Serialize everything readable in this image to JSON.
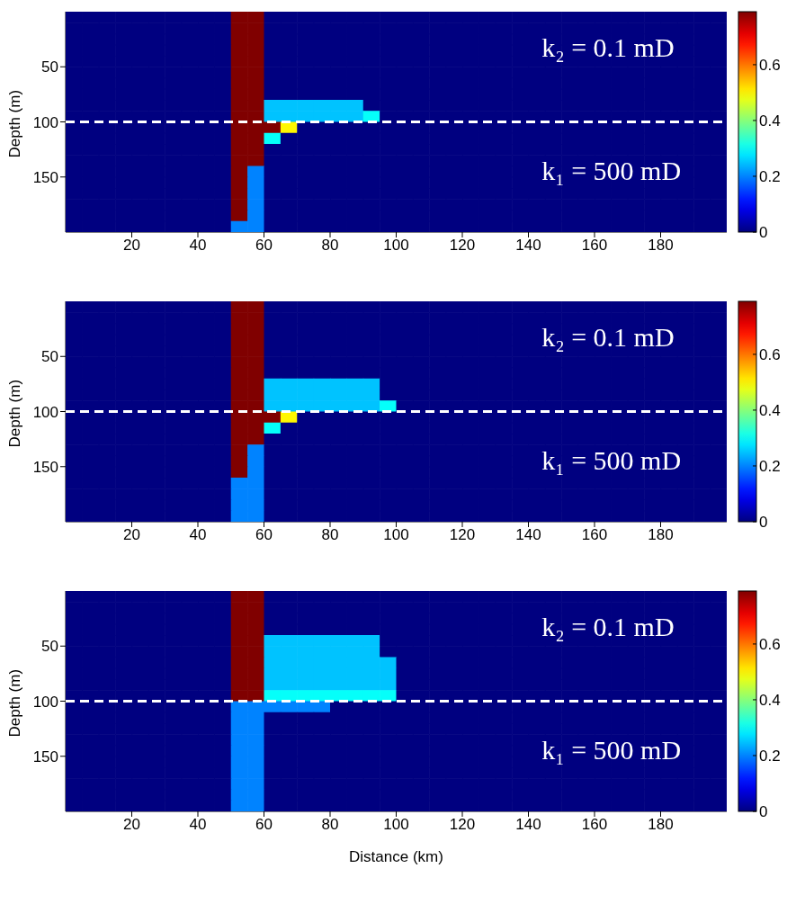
{
  "chart_data": [
    {
      "type": "heatmap",
      "ylabel": "Depth (m)",
      "xlim": [
        0,
        200
      ],
      "xticks": [
        20,
        40,
        60,
        80,
        100,
        120,
        140,
        160,
        180
      ],
      "ylim": [
        200,
        0
      ],
      "yticks": [
        50,
        100,
        150
      ],
      "clim": [
        0,
        0.79
      ],
      "cticks": [
        0,
        0.2,
        0.4,
        0.6
      ],
      "ref_lines": [
        {
          "axis": "y",
          "value": 100,
          "color": "#ffffff",
          "line_style": "dashed"
        }
      ],
      "annotations": [
        "k₂ = 0.1 mD",
        "k₁ = 500 mD"
      ],
      "cells": [
        [
          0,
          0,
          0,
          0,
          0,
          0,
          0,
          0,
          0,
          0,
          0.79,
          0.79,
          0,
          0,
          0,
          0,
          0,
          0,
          0,
          0,
          0,
          0,
          0,
          0,
          0,
          0,
          0,
          0,
          0,
          0,
          0,
          0,
          0,
          0,
          0,
          0,
          0,
          0,
          0,
          0
        ],
        [
          0,
          0,
          0,
          0,
          0,
          0,
          0,
          0,
          0,
          0,
          0.79,
          0.79,
          0,
          0,
          0,
          0,
          0,
          0,
          0,
          0,
          0,
          0,
          0,
          0,
          0,
          0,
          0,
          0,
          0,
          0,
          0,
          0,
          0,
          0,
          0,
          0,
          0,
          0,
          0,
          0
        ],
        [
          0,
          0,
          0,
          0,
          0,
          0,
          0,
          0,
          0,
          0,
          0.79,
          0.79,
          0,
          0,
          0,
          0,
          0,
          0,
          0,
          0,
          0,
          0,
          0,
          0,
          0,
          0,
          0,
          0,
          0,
          0,
          0,
          0,
          0,
          0,
          0,
          0,
          0,
          0,
          0,
          0
        ],
        [
          0,
          0,
          0,
          0,
          0,
          0,
          0,
          0,
          0,
          0,
          0.79,
          0.79,
          0,
          0,
          0,
          0,
          0,
          0,
          0,
          0,
          0,
          0,
          0,
          0,
          0,
          0,
          0,
          0,
          0,
          0,
          0,
          0,
          0,
          0,
          0,
          0,
          0,
          0,
          0,
          0
        ],
        [
          0,
          0,
          0,
          0,
          0,
          0,
          0,
          0,
          0,
          0,
          0.79,
          0.79,
          0,
          0,
          0,
          0,
          0,
          0,
          0,
          0,
          0,
          0,
          0,
          0,
          0,
          0,
          0,
          0,
          0,
          0,
          0,
          0,
          0,
          0,
          0,
          0,
          0,
          0,
          0,
          0
        ],
        [
          0,
          0,
          0,
          0,
          0,
          0,
          0,
          0,
          0,
          0,
          0.79,
          0.79,
          0,
          0,
          0,
          0,
          0,
          0,
          0,
          0,
          0,
          0,
          0,
          0,
          0,
          0,
          0,
          0,
          0,
          0,
          0,
          0,
          0,
          0,
          0,
          0,
          0,
          0,
          0,
          0
        ],
        [
          0,
          0,
          0,
          0,
          0,
          0,
          0,
          0,
          0,
          0,
          0.79,
          0.79,
          0,
          0,
          0,
          0,
          0,
          0,
          0,
          0,
          0,
          0,
          0,
          0,
          0,
          0,
          0,
          0,
          0,
          0,
          0,
          0,
          0,
          0,
          0,
          0,
          0,
          0,
          0,
          0
        ],
        [
          0,
          0,
          0,
          0,
          0,
          0,
          0,
          0,
          0,
          0,
          0.79,
          0.79,
          0,
          0,
          0,
          0,
          0,
          0,
          0,
          0,
          0,
          0,
          0,
          0,
          0,
          0,
          0,
          0,
          0,
          0,
          0,
          0,
          0,
          0,
          0,
          0,
          0,
          0,
          0,
          0
        ],
        [
          0,
          0,
          0,
          0,
          0,
          0,
          0,
          0,
          0,
          0,
          0.79,
          0.79,
          0.25,
          0.25,
          0.25,
          0.25,
          0.25,
          0.25,
          0,
          0,
          0,
          0,
          0,
          0,
          0,
          0,
          0,
          0,
          0,
          0,
          0,
          0,
          0,
          0,
          0,
          0,
          0,
          0,
          0,
          0
        ],
        [
          0,
          0,
          0,
          0,
          0,
          0,
          0,
          0,
          0,
          0,
          0.79,
          0.79,
          0.25,
          0.25,
          0.25,
          0.25,
          0.25,
          0.25,
          0.3,
          0,
          0,
          0,
          0,
          0,
          0,
          0,
          0,
          0,
          0,
          0,
          0,
          0,
          0,
          0,
          0,
          0,
          0,
          0,
          0,
          0
        ],
        [
          0,
          0,
          0,
          0,
          0,
          0,
          0,
          0,
          0,
          0,
          0.79,
          0.79,
          0.79,
          0.5,
          0,
          0,
          0,
          0,
          0,
          0,
          0,
          0,
          0,
          0,
          0,
          0,
          0,
          0,
          0,
          0,
          0,
          0,
          0,
          0,
          0,
          0,
          0,
          0,
          0,
          0
        ],
        [
          0,
          0,
          0,
          0,
          0,
          0,
          0,
          0,
          0,
          0,
          0.79,
          0.79,
          0.3,
          0,
          0,
          0,
          0,
          0,
          0,
          0,
          0,
          0,
          0,
          0,
          0,
          0,
          0,
          0,
          0,
          0,
          0,
          0,
          0,
          0,
          0,
          0,
          0,
          0,
          0,
          0
        ],
        [
          0,
          0,
          0,
          0,
          0,
          0,
          0,
          0,
          0,
          0,
          0.79,
          0.79,
          0,
          0,
          0,
          0,
          0,
          0,
          0,
          0,
          0,
          0,
          0,
          0,
          0,
          0,
          0,
          0,
          0,
          0,
          0,
          0,
          0,
          0,
          0,
          0,
          0,
          0,
          0,
          0
        ],
        [
          0,
          0,
          0,
          0,
          0,
          0,
          0,
          0,
          0,
          0,
          0.79,
          0.79,
          0,
          0,
          0,
          0,
          0,
          0,
          0,
          0,
          0,
          0,
          0,
          0,
          0,
          0,
          0,
          0,
          0,
          0,
          0,
          0,
          0,
          0,
          0,
          0,
          0,
          0,
          0,
          0
        ],
        [
          0,
          0,
          0,
          0,
          0,
          0,
          0,
          0,
          0,
          0,
          0.79,
          0.2,
          0,
          0,
          0,
          0,
          0,
          0,
          0,
          0,
          0,
          0,
          0,
          0,
          0,
          0,
          0,
          0,
          0,
          0,
          0,
          0,
          0,
          0,
          0,
          0,
          0,
          0,
          0,
          0
        ],
        [
          0,
          0,
          0,
          0,
          0,
          0,
          0,
          0,
          0,
          0,
          0.79,
          0.2,
          0,
          0,
          0,
          0,
          0,
          0,
          0,
          0,
          0,
          0,
          0,
          0,
          0,
          0,
          0,
          0,
          0,
          0,
          0,
          0,
          0,
          0,
          0,
          0,
          0,
          0,
          0,
          0
        ],
        [
          0,
          0,
          0,
          0,
          0,
          0,
          0,
          0,
          0,
          0,
          0.79,
          0.2,
          0,
          0,
          0,
          0,
          0,
          0,
          0,
          0,
          0,
          0,
          0,
          0,
          0,
          0,
          0,
          0,
          0,
          0,
          0,
          0,
          0,
          0,
          0,
          0,
          0,
          0,
          0,
          0
        ],
        [
          0,
          0,
          0,
          0,
          0,
          0,
          0,
          0,
          0,
          0,
          0.79,
          0.2,
          0,
          0,
          0,
          0,
          0,
          0,
          0,
          0,
          0,
          0,
          0,
          0,
          0,
          0,
          0,
          0,
          0,
          0,
          0,
          0,
          0,
          0,
          0,
          0,
          0,
          0,
          0,
          0
        ],
        [
          0,
          0,
          0,
          0,
          0,
          0,
          0,
          0,
          0,
          0,
          0.79,
          0.2,
          0,
          0,
          0,
          0,
          0,
          0,
          0,
          0,
          0,
          0,
          0,
          0,
          0,
          0,
          0,
          0,
          0,
          0,
          0,
          0,
          0,
          0,
          0,
          0,
          0,
          0,
          0,
          0
        ],
        [
          0,
          0,
          0,
          0,
          0,
          0,
          0,
          0,
          0,
          0,
          0.2,
          0.2,
          0,
          0,
          0,
          0,
          0,
          0,
          0,
          0,
          0,
          0,
          0,
          0,
          0,
          0,
          0,
          0,
          0,
          0,
          0,
          0,
          0,
          0,
          0,
          0,
          0,
          0,
          0,
          0
        ]
      ]
    },
    {
      "type": "heatmap",
      "ylabel": "Depth (m)",
      "xlim": [
        0,
        200
      ],
      "xticks": [
        20,
        40,
        60,
        80,
        100,
        120,
        140,
        160,
        180
      ],
      "ylim": [
        200,
        0
      ],
      "yticks": [
        50,
        100,
        150
      ],
      "clim": [
        0,
        0.79
      ],
      "cticks": [
        0,
        0.2,
        0.4,
        0.6
      ],
      "ref_lines": [
        {
          "axis": "y",
          "value": 100,
          "color": "#ffffff",
          "line_style": "dashed"
        }
      ],
      "annotations": [
        "k₂ = 0.1 mD",
        "k₁ = 500 mD"
      ],
      "cells": [
        [
          0,
          0,
          0,
          0,
          0,
          0,
          0,
          0,
          0,
          0,
          0.79,
          0.79,
          0,
          0,
          0,
          0,
          0,
          0,
          0,
          0,
          0,
          0,
          0,
          0,
          0,
          0,
          0,
          0,
          0,
          0,
          0,
          0,
          0,
          0,
          0,
          0,
          0,
          0,
          0,
          0
        ],
        [
          0,
          0,
          0,
          0,
          0,
          0,
          0,
          0,
          0,
          0,
          0.79,
          0.79,
          0,
          0,
          0,
          0,
          0,
          0,
          0,
          0,
          0,
          0,
          0,
          0,
          0,
          0,
          0,
          0,
          0,
          0,
          0,
          0,
          0,
          0,
          0,
          0,
          0,
          0,
          0,
          0
        ],
        [
          0,
          0,
          0,
          0,
          0,
          0,
          0,
          0,
          0,
          0,
          0.79,
          0.79,
          0,
          0,
          0,
          0,
          0,
          0,
          0,
          0,
          0,
          0,
          0,
          0,
          0,
          0,
          0,
          0,
          0,
          0,
          0,
          0,
          0,
          0,
          0,
          0,
          0,
          0,
          0,
          0
        ],
        [
          0,
          0,
          0,
          0,
          0,
          0,
          0,
          0,
          0,
          0,
          0.79,
          0.79,
          0,
          0,
          0,
          0,
          0,
          0,
          0,
          0,
          0,
          0,
          0,
          0,
          0,
          0,
          0,
          0,
          0,
          0,
          0,
          0,
          0,
          0,
          0,
          0,
          0,
          0,
          0,
          0
        ],
        [
          0,
          0,
          0,
          0,
          0,
          0,
          0,
          0,
          0,
          0,
          0.79,
          0.79,
          0,
          0,
          0,
          0,
          0,
          0,
          0,
          0,
          0,
          0,
          0,
          0,
          0,
          0,
          0,
          0,
          0,
          0,
          0,
          0,
          0,
          0,
          0,
          0,
          0,
          0,
          0,
          0
        ],
        [
          0,
          0,
          0,
          0,
          0,
          0,
          0,
          0,
          0,
          0,
          0.79,
          0.79,
          0,
          0,
          0,
          0,
          0,
          0,
          0,
          0,
          0,
          0,
          0,
          0,
          0,
          0,
          0,
          0,
          0,
          0,
          0,
          0,
          0,
          0,
          0,
          0,
          0,
          0,
          0,
          0
        ],
        [
          0,
          0,
          0,
          0,
          0,
          0,
          0,
          0,
          0,
          0,
          0.79,
          0.79,
          0,
          0,
          0,
          0,
          0,
          0,
          0,
          0,
          0,
          0,
          0,
          0,
          0,
          0,
          0,
          0,
          0,
          0,
          0,
          0,
          0,
          0,
          0,
          0,
          0,
          0,
          0,
          0
        ],
        [
          0,
          0,
          0,
          0,
          0,
          0,
          0,
          0,
          0,
          0,
          0.79,
          0.79,
          0.25,
          0.25,
          0.25,
          0.25,
          0.25,
          0.25,
          0.25,
          0,
          0,
          0,
          0,
          0,
          0,
          0,
          0,
          0,
          0,
          0,
          0,
          0,
          0,
          0,
          0,
          0,
          0,
          0,
          0,
          0
        ],
        [
          0,
          0,
          0,
          0,
          0,
          0,
          0,
          0,
          0,
          0,
          0.79,
          0.79,
          0.25,
          0.25,
          0.25,
          0.25,
          0.25,
          0.25,
          0.25,
          0,
          0,
          0,
          0,
          0,
          0,
          0,
          0,
          0,
          0,
          0,
          0,
          0,
          0,
          0,
          0,
          0,
          0,
          0,
          0,
          0
        ],
        [
          0,
          0,
          0,
          0,
          0,
          0,
          0,
          0,
          0,
          0,
          0.79,
          0.79,
          0.25,
          0.25,
          0.25,
          0.25,
          0.25,
          0.25,
          0.25,
          0.3,
          0,
          0,
          0,
          0,
          0,
          0,
          0,
          0,
          0,
          0,
          0,
          0,
          0,
          0,
          0,
          0,
          0,
          0,
          0,
          0
        ],
        [
          0,
          0,
          0,
          0,
          0,
          0,
          0,
          0,
          0,
          0,
          0.79,
          0.79,
          0.79,
          0.5,
          0,
          0,
          0,
          0,
          0,
          0,
          0,
          0,
          0,
          0,
          0,
          0,
          0,
          0,
          0,
          0,
          0,
          0,
          0,
          0,
          0,
          0,
          0,
          0,
          0,
          0
        ],
        [
          0,
          0,
          0,
          0,
          0,
          0,
          0,
          0,
          0,
          0,
          0.79,
          0.79,
          0.3,
          0,
          0,
          0,
          0,
          0,
          0,
          0,
          0,
          0,
          0,
          0,
          0,
          0,
          0,
          0,
          0,
          0,
          0,
          0,
          0,
          0,
          0,
          0,
          0,
          0,
          0,
          0
        ],
        [
          0,
          0,
          0,
          0,
          0,
          0,
          0,
          0,
          0,
          0,
          0.79,
          0.79,
          0,
          0,
          0,
          0,
          0,
          0,
          0,
          0,
          0,
          0,
          0,
          0,
          0,
          0,
          0,
          0,
          0,
          0,
          0,
          0,
          0,
          0,
          0,
          0,
          0,
          0,
          0,
          0
        ],
        [
          0,
          0,
          0,
          0,
          0,
          0,
          0,
          0,
          0,
          0,
          0.79,
          0.2,
          0,
          0,
          0,
          0,
          0,
          0,
          0,
          0,
          0,
          0,
          0,
          0,
          0,
          0,
          0,
          0,
          0,
          0,
          0,
          0,
          0,
          0,
          0,
          0,
          0,
          0,
          0,
          0
        ],
        [
          0,
          0,
          0,
          0,
          0,
          0,
          0,
          0,
          0,
          0,
          0.79,
          0.2,
          0,
          0,
          0,
          0,
          0,
          0,
          0,
          0,
          0,
          0,
          0,
          0,
          0,
          0,
          0,
          0,
          0,
          0,
          0,
          0,
          0,
          0,
          0,
          0,
          0,
          0,
          0,
          0
        ],
        [
          0,
          0,
          0,
          0,
          0,
          0,
          0,
          0,
          0,
          0,
          0.79,
          0.2,
          0,
          0,
          0,
          0,
          0,
          0,
          0,
          0,
          0,
          0,
          0,
          0,
          0,
          0,
          0,
          0,
          0,
          0,
          0,
          0,
          0,
          0,
          0,
          0,
          0,
          0,
          0,
          0
        ],
        [
          0,
          0,
          0,
          0,
          0,
          0,
          0,
          0,
          0,
          0,
          0.2,
          0.2,
          0,
          0,
          0,
          0,
          0,
          0,
          0,
          0,
          0,
          0,
          0,
          0,
          0,
          0,
          0,
          0,
          0,
          0,
          0,
          0,
          0,
          0,
          0,
          0,
          0,
          0,
          0,
          0
        ],
        [
          0,
          0,
          0,
          0,
          0,
          0,
          0,
          0,
          0,
          0,
          0.2,
          0.2,
          0,
          0,
          0,
          0,
          0,
          0,
          0,
          0,
          0,
          0,
          0,
          0,
          0,
          0,
          0,
          0,
          0,
          0,
          0,
          0,
          0,
          0,
          0,
          0,
          0,
          0,
          0,
          0
        ],
        [
          0,
          0,
          0,
          0,
          0,
          0,
          0,
          0,
          0,
          0,
          0.2,
          0.2,
          0,
          0,
          0,
          0,
          0,
          0,
          0,
          0,
          0,
          0,
          0,
          0,
          0,
          0,
          0,
          0,
          0,
          0,
          0,
          0,
          0,
          0,
          0,
          0,
          0,
          0,
          0,
          0
        ],
        [
          0,
          0,
          0,
          0,
          0,
          0,
          0,
          0,
          0,
          0,
          0.2,
          0.2,
          0,
          0,
          0,
          0,
          0,
          0,
          0,
          0,
          0,
          0,
          0,
          0,
          0,
          0,
          0,
          0,
          0,
          0,
          0,
          0,
          0,
          0,
          0,
          0,
          0,
          0,
          0,
          0
        ]
      ]
    },
    {
      "type": "heatmap",
      "ylabel": "Depth (m)",
      "xlabel": "Distance (km)",
      "xlim": [
        0,
        200
      ],
      "xticks": [
        20,
        40,
        60,
        80,
        100,
        120,
        140,
        160,
        180
      ],
      "ylim": [
        200,
        0
      ],
      "yticks": [
        50,
        100,
        150
      ],
      "clim": [
        0,
        0.79
      ],
      "cticks": [
        0,
        0.2,
        0.4,
        0.6
      ],
      "ref_lines": [
        {
          "axis": "y",
          "value": 100,
          "color": "#ffffff",
          "line_style": "dashed"
        }
      ],
      "annotations": [
        "k₂ = 0.1 mD",
        "k₁ = 500 mD"
      ],
      "cells": [
        [
          0,
          0,
          0,
          0,
          0,
          0,
          0,
          0,
          0,
          0,
          0.79,
          0.79,
          0,
          0,
          0,
          0,
          0,
          0,
          0,
          0,
          0,
          0,
          0,
          0,
          0,
          0,
          0,
          0,
          0,
          0,
          0,
          0,
          0,
          0,
          0,
          0,
          0,
          0,
          0,
          0
        ],
        [
          0,
          0,
          0,
          0,
          0,
          0,
          0,
          0,
          0,
          0,
          0.79,
          0.79,
          0,
          0,
          0,
          0,
          0,
          0,
          0,
          0,
          0,
          0,
          0,
          0,
          0,
          0,
          0,
          0,
          0,
          0,
          0,
          0,
          0,
          0,
          0,
          0,
          0,
          0,
          0,
          0
        ],
        [
          0,
          0,
          0,
          0,
          0,
          0,
          0,
          0,
          0,
          0,
          0.79,
          0.79,
          0,
          0,
          0,
          0,
          0,
          0,
          0,
          0,
          0,
          0,
          0,
          0,
          0,
          0,
          0,
          0,
          0,
          0,
          0,
          0,
          0,
          0,
          0,
          0,
          0,
          0,
          0,
          0
        ],
        [
          0,
          0,
          0,
          0,
          0,
          0,
          0,
          0,
          0,
          0,
          0.79,
          0.79,
          0,
          0,
          0,
          0,
          0,
          0,
          0,
          0,
          0,
          0,
          0,
          0,
          0,
          0,
          0,
          0,
          0,
          0,
          0,
          0,
          0,
          0,
          0,
          0,
          0,
          0,
          0,
          0
        ],
        [
          0,
          0,
          0,
          0,
          0,
          0,
          0,
          0,
          0,
          0,
          0.79,
          0.79,
          0.25,
          0.25,
          0.25,
          0.25,
          0.25,
          0.25,
          0.25,
          0,
          0,
          0,
          0,
          0,
          0,
          0,
          0,
          0,
          0,
          0,
          0,
          0,
          0,
          0,
          0,
          0,
          0,
          0,
          0,
          0
        ],
        [
          0,
          0,
          0,
          0,
          0,
          0,
          0,
          0,
          0,
          0,
          0.79,
          0.79,
          0.25,
          0.25,
          0.25,
          0.25,
          0.25,
          0.25,
          0.25,
          0,
          0,
          0,
          0,
          0,
          0,
          0,
          0,
          0,
          0,
          0,
          0,
          0,
          0,
          0,
          0,
          0,
          0,
          0,
          0,
          0
        ],
        [
          0,
          0,
          0,
          0,
          0,
          0,
          0,
          0,
          0,
          0,
          0.79,
          0.79,
          0.25,
          0.25,
          0.25,
          0.25,
          0.25,
          0.25,
          0.25,
          0.25,
          0,
          0,
          0,
          0,
          0,
          0,
          0,
          0,
          0,
          0,
          0,
          0,
          0,
          0,
          0,
          0,
          0,
          0,
          0,
          0
        ],
        [
          0,
          0,
          0,
          0,
          0,
          0,
          0,
          0,
          0,
          0,
          0.79,
          0.79,
          0.25,
          0.25,
          0.25,
          0.25,
          0.25,
          0.25,
          0.25,
          0.25,
          0,
          0,
          0,
          0,
          0,
          0,
          0,
          0,
          0,
          0,
          0,
          0,
          0,
          0,
          0,
          0,
          0,
          0,
          0,
          0
        ],
        [
          0,
          0,
          0,
          0,
          0,
          0,
          0,
          0,
          0,
          0,
          0.79,
          0.79,
          0.25,
          0.25,
          0.25,
          0.25,
          0.25,
          0.25,
          0.25,
          0.25,
          0,
          0,
          0,
          0,
          0,
          0,
          0,
          0,
          0,
          0,
          0,
          0,
          0,
          0,
          0,
          0,
          0,
          0,
          0,
          0
        ],
        [
          0,
          0,
          0,
          0,
          0,
          0,
          0,
          0,
          0,
          0,
          0.79,
          0.79,
          0.3,
          0.3,
          0.3,
          0.3,
          0.3,
          0.3,
          0.3,
          0.3,
          0,
          0,
          0,
          0,
          0,
          0,
          0,
          0,
          0,
          0,
          0,
          0,
          0,
          0,
          0,
          0,
          0,
          0,
          0,
          0
        ],
        [
          0,
          0,
          0,
          0,
          0,
          0,
          0,
          0,
          0,
          0,
          0.2,
          0.2,
          0.2,
          0.2,
          0.2,
          0.2,
          0,
          0,
          0,
          0,
          0,
          0,
          0,
          0,
          0,
          0,
          0,
          0,
          0,
          0,
          0,
          0,
          0,
          0,
          0,
          0,
          0,
          0,
          0,
          0
        ],
        [
          0,
          0,
          0,
          0,
          0,
          0,
          0,
          0,
          0,
          0,
          0.2,
          0.2,
          0,
          0,
          0,
          0,
          0,
          0,
          0,
          0,
          0,
          0,
          0,
          0,
          0,
          0,
          0,
          0,
          0,
          0,
          0,
          0,
          0,
          0,
          0,
          0,
          0,
          0,
          0,
          0
        ],
        [
          0,
          0,
          0,
          0,
          0,
          0,
          0,
          0,
          0,
          0,
          0.2,
          0.2,
          0,
          0,
          0,
          0,
          0,
          0,
          0,
          0,
          0,
          0,
          0,
          0,
          0,
          0,
          0,
          0,
          0,
          0,
          0,
          0,
          0,
          0,
          0,
          0,
          0,
          0,
          0,
          0
        ],
        [
          0,
          0,
          0,
          0,
          0,
          0,
          0,
          0,
          0,
          0,
          0.2,
          0.2,
          0,
          0,
          0,
          0,
          0,
          0,
          0,
          0,
          0,
          0,
          0,
          0,
          0,
          0,
          0,
          0,
          0,
          0,
          0,
          0,
          0,
          0,
          0,
          0,
          0,
          0,
          0,
          0
        ],
        [
          0,
          0,
          0,
          0,
          0,
          0,
          0,
          0,
          0,
          0,
          0.2,
          0.2,
          0,
          0,
          0,
          0,
          0,
          0,
          0,
          0,
          0,
          0,
          0,
          0,
          0,
          0,
          0,
          0,
          0,
          0,
          0,
          0,
          0,
          0,
          0,
          0,
          0,
          0,
          0,
          0
        ],
        [
          0,
          0,
          0,
          0,
          0,
          0,
          0,
          0,
          0,
          0,
          0.2,
          0.2,
          0,
          0,
          0,
          0,
          0,
          0,
          0,
          0,
          0,
          0,
          0,
          0,
          0,
          0,
          0,
          0,
          0,
          0,
          0,
          0,
          0,
          0,
          0,
          0,
          0,
          0,
          0,
          0
        ],
        [
          0,
          0,
          0,
          0,
          0,
          0,
          0,
          0,
          0,
          0,
          0.2,
          0.2,
          0,
          0,
          0,
          0,
          0,
          0,
          0,
          0,
          0,
          0,
          0,
          0,
          0,
          0,
          0,
          0,
          0,
          0,
          0,
          0,
          0,
          0,
          0,
          0,
          0,
          0,
          0,
          0
        ],
        [
          0,
          0,
          0,
          0,
          0,
          0,
          0,
          0,
          0,
          0,
          0.2,
          0.2,
          0,
          0,
          0,
          0,
          0,
          0,
          0,
          0,
          0,
          0,
          0,
          0,
          0,
          0,
          0,
          0,
          0,
          0,
          0,
          0,
          0,
          0,
          0,
          0,
          0,
          0,
          0,
          0
        ],
        [
          0,
          0,
          0,
          0,
          0,
          0,
          0,
          0,
          0,
          0,
          0.2,
          0.2,
          0,
          0,
          0,
          0,
          0,
          0,
          0,
          0,
          0,
          0,
          0,
          0,
          0,
          0,
          0,
          0,
          0,
          0,
          0,
          0,
          0,
          0,
          0,
          0,
          0,
          0,
          0,
          0
        ],
        [
          0,
          0,
          0,
          0,
          0,
          0,
          0,
          0,
          0,
          0,
          0.2,
          0.2,
          0,
          0,
          0,
          0,
          0,
          0,
          0,
          0,
          0,
          0,
          0,
          0,
          0,
          0,
          0,
          0,
          0,
          0,
          0,
          0,
          0,
          0,
          0,
          0,
          0,
          0,
          0,
          0
        ]
      ]
    }
  ]
}
